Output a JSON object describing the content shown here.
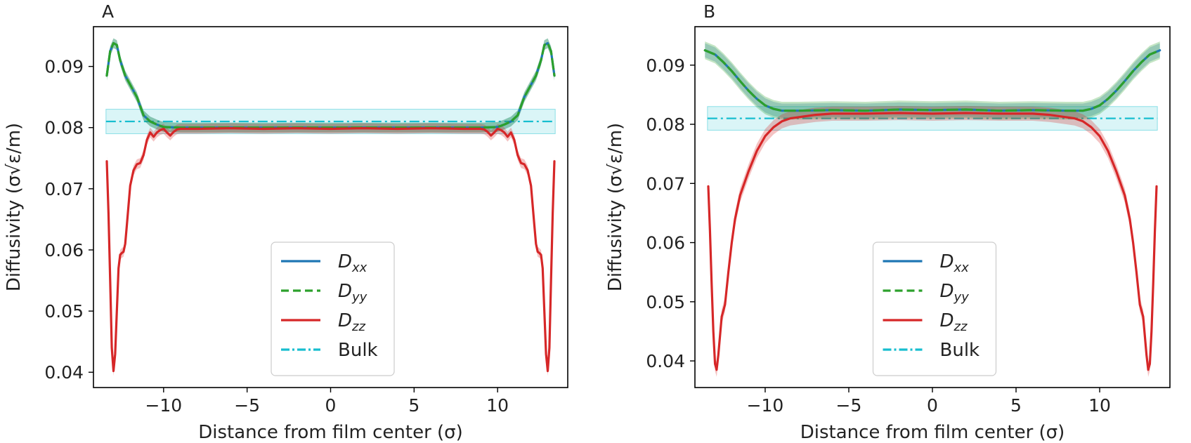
{
  "chart_data": [
    {
      "panel": "A",
      "type": "line",
      "title": "",
      "xlabel": "Distance from film center (σ)",
      "ylabel": "Diffusivity (σ√ε/m)",
      "xlim": [
        -14.2,
        14.2
      ],
      "ylim": [
        0.0375,
        0.0965
      ],
      "xticks": [
        -10,
        -5,
        0,
        5,
        10
      ],
      "xtick_labels": [
        "−10",
        "−5",
        "0",
        "5",
        "10"
      ],
      "yticks": [
        0.04,
        0.05,
        0.06,
        0.07,
        0.08,
        0.09
      ],
      "ytick_labels": [
        "0.04",
        "0.05",
        "0.06",
        "0.07",
        "0.08",
        "0.09"
      ],
      "grid": false,
      "legend_position": "lower center",
      "bulk": {
        "value": 0.081,
        "band": [
          0.079,
          0.083
        ]
      },
      "series": [
        {
          "key": "dxx",
          "name": "D",
          "subscript": "xx",
          "color": "#1f77b4",
          "style": "solid",
          "band": 0.0008,
          "x": [
            -13.4,
            -13.2,
            -13.0,
            -12.8,
            -12.6,
            -12.3,
            -12.0,
            -11.6,
            -11.2,
            -10.8,
            -10.4,
            -10.0,
            -9.0,
            -8.0,
            -6.0,
            -4.0,
            -2.0,
            0,
            2.0,
            4.0,
            6.0,
            8.0,
            9.0,
            10.0,
            10.4,
            10.8,
            11.2,
            11.6,
            12.0,
            12.3,
            12.6,
            12.8,
            13.0,
            13.2,
            13.4
          ],
          "y": [
            0.0885,
            0.0925,
            0.0938,
            0.0935,
            0.091,
            0.0885,
            0.087,
            0.085,
            0.082,
            0.081,
            0.0805,
            0.0801,
            0.08,
            0.08,
            0.08,
            0.08,
            0.08,
            0.08,
            0.08,
            0.08,
            0.08,
            0.08,
            0.08,
            0.0801,
            0.0805,
            0.081,
            0.082,
            0.085,
            0.087,
            0.0885,
            0.091,
            0.0935,
            0.0938,
            0.0925,
            0.0885
          ]
        },
        {
          "key": "dyy",
          "name": "D",
          "subscript": "yy",
          "color": "#2ca02c",
          "style": "dashed",
          "band": 0.0008,
          "x": [
            -13.4,
            -13.2,
            -13.0,
            -12.8,
            -12.6,
            -12.3,
            -12.0,
            -11.6,
            -11.2,
            -10.8,
            -10.4,
            -10.0,
            -9.0,
            -8.0,
            -6.0,
            -4.0,
            -2.0,
            0,
            2.0,
            4.0,
            6.0,
            8.0,
            9.0,
            10.0,
            10.4,
            10.8,
            11.2,
            11.6,
            12.0,
            12.3,
            12.6,
            12.8,
            13.0,
            13.2,
            13.4
          ],
          "y": [
            0.0885,
            0.0925,
            0.0938,
            0.0935,
            0.091,
            0.0885,
            0.087,
            0.085,
            0.082,
            0.081,
            0.0805,
            0.0801,
            0.08,
            0.08,
            0.08,
            0.08,
            0.08,
            0.08,
            0.08,
            0.08,
            0.08,
            0.08,
            0.08,
            0.0801,
            0.0805,
            0.081,
            0.082,
            0.085,
            0.087,
            0.0885,
            0.091,
            0.0935,
            0.0938,
            0.0925,
            0.0885
          ]
        },
        {
          "key": "dzz",
          "name": "D",
          "subscript": "zz",
          "color": "#d62728",
          "style": "solid",
          "band": 0.0008,
          "x": [
            -13.4,
            -13.3,
            -13.2,
            -13.1,
            -13.0,
            -12.9,
            -12.8,
            -12.7,
            -12.6,
            -12.5,
            -12.4,
            -12.3,
            -12.2,
            -12.0,
            -11.8,
            -11.6,
            -11.4,
            -11.2,
            -11.0,
            -10.8,
            -10.6,
            -10.4,
            -10.2,
            -10.0,
            -9.8,
            -9.6,
            -9.4,
            -9.2,
            -9.0,
            -8.0,
            -6.0,
            -4.0,
            -2.0,
            0,
            2.0,
            4.0,
            6.0,
            8.0,
            9.0,
            9.2,
            9.4,
            9.6,
            9.8,
            10.0,
            10.2,
            10.4,
            10.6,
            10.8,
            11.0,
            11.2,
            11.4,
            11.6,
            11.8,
            12.0,
            12.2,
            12.3,
            12.4,
            12.5,
            12.6,
            12.7,
            12.8,
            12.9,
            13.0,
            13.1,
            13.2,
            13.3,
            13.4
          ],
          "y": [
            0.0745,
            0.066,
            0.055,
            0.044,
            0.0402,
            0.043,
            0.05,
            0.057,
            0.0592,
            0.0595,
            0.0597,
            0.061,
            0.064,
            0.0705,
            0.073,
            0.074,
            0.0742,
            0.0755,
            0.078,
            0.0792,
            0.0785,
            0.0792,
            0.0796,
            0.0798,
            0.0792,
            0.0787,
            0.0793,
            0.0797,
            0.0798,
            0.0798,
            0.0799,
            0.0798,
            0.0799,
            0.0798,
            0.0799,
            0.0798,
            0.0799,
            0.0798,
            0.0798,
            0.0797,
            0.0793,
            0.0787,
            0.0792,
            0.0798,
            0.0796,
            0.0792,
            0.0785,
            0.0792,
            0.078,
            0.0755,
            0.0742,
            0.074,
            0.073,
            0.0705,
            0.064,
            0.061,
            0.0597,
            0.0595,
            0.0592,
            0.057,
            0.05,
            0.043,
            0.0402,
            0.044,
            0.055,
            0.066,
            0.0745
          ]
        }
      ],
      "legend": [
        {
          "label": "D",
          "sub": "xx",
          "color": "#1f77b4",
          "style": "solid"
        },
        {
          "label": "D",
          "sub": "yy",
          "color": "#2ca02c",
          "style": "dashed"
        },
        {
          "label": "D",
          "sub": "zz",
          "color": "#d62728",
          "style": "solid"
        },
        {
          "label": "Bulk",
          "sub": "",
          "color": "#17becf",
          "style": "dashdot"
        }
      ]
    },
    {
      "panel": "B",
      "type": "line",
      "title": "",
      "xlabel": "Distance from film center (σ)",
      "ylabel": "Diffusivity (σ√ε/m)",
      "xlim": [
        -14.2,
        14.2
      ],
      "ylim": [
        0.0355,
        0.0965
      ],
      "xticks": [
        -10,
        -5,
        0,
        5,
        10
      ],
      "xtick_labels": [
        "−10",
        "−5",
        "0",
        "5",
        "10"
      ],
      "yticks": [
        0.04,
        0.05,
        0.06,
        0.07,
        0.08,
        0.09
      ],
      "ytick_labels": [
        "0.04",
        "0.05",
        "0.06",
        "0.07",
        "0.08",
        "0.09"
      ],
      "grid": false,
      "legend_position": "lower center",
      "bulk": {
        "value": 0.081,
        "band": [
          0.079,
          0.083
        ]
      },
      "series": [
        {
          "key": "dxx",
          "name": "D",
          "subscript": "xx",
          "color": "#1f77b4",
          "style": "solid",
          "band": 0.0012,
          "x": [
            -13.6,
            -13.0,
            -12.5,
            -12.0,
            -11.5,
            -11.0,
            -10.5,
            -10.0,
            -9.5,
            -9.0,
            -8.0,
            -6.0,
            -4.0,
            -2.0,
            0,
            2.0,
            4.0,
            6.0,
            8.0,
            9.0,
            9.5,
            10.0,
            10.5,
            11.0,
            11.5,
            12.0,
            12.5,
            13.0,
            13.6
          ],
          "y": [
            0.0925,
            0.0918,
            0.0905,
            0.089,
            0.0873,
            0.0857,
            0.0843,
            0.0832,
            0.0826,
            0.0823,
            0.0823,
            0.0824,
            0.0823,
            0.0825,
            0.0824,
            0.0825,
            0.0823,
            0.0824,
            0.0823,
            0.0823,
            0.0826,
            0.0832,
            0.0843,
            0.0857,
            0.0873,
            0.089,
            0.0905,
            0.0918,
            0.0925
          ]
        },
        {
          "key": "dyy",
          "name": "D",
          "subscript": "yy",
          "color": "#2ca02c",
          "style": "dashed",
          "band": 0.0015,
          "x": [
            -13.6,
            -13.0,
            -12.5,
            -12.0,
            -11.5,
            -11.0,
            -10.5,
            -10.0,
            -9.5,
            -9.0,
            -8.0,
            -6.0,
            -4.0,
            -2.0,
            0,
            2.0,
            4.0,
            6.0,
            8.0,
            9.0,
            9.5,
            10.0,
            10.5,
            11.0,
            11.5,
            12.0,
            12.5,
            13.0,
            13.6
          ],
          "y": [
            0.0925,
            0.0918,
            0.0905,
            0.089,
            0.0873,
            0.0857,
            0.0843,
            0.0832,
            0.0826,
            0.0823,
            0.0823,
            0.0824,
            0.0823,
            0.0825,
            0.0824,
            0.0825,
            0.0823,
            0.0824,
            0.0823,
            0.0823,
            0.0826,
            0.0832,
            0.0843,
            0.0857,
            0.0873,
            0.089,
            0.0905,
            0.0918,
            0.0925
          ]
        },
        {
          "key": "dzz",
          "name": "D",
          "subscript": "zz",
          "color": "#d62728",
          "style": "solid",
          "band": 0.0012,
          "x": [
            -13.4,
            -13.3,
            -13.2,
            -13.1,
            -13.0,
            -12.9,
            -12.8,
            -12.6,
            -12.4,
            -12.2,
            -12.0,
            -11.8,
            -11.5,
            -11.0,
            -10.5,
            -10.0,
            -9.5,
            -9.0,
            -8.5,
            -8.0,
            -7.0,
            -6.0,
            -4.0,
            -2.0,
            0,
            2.0,
            4.0,
            6.0,
            7.0,
            8.0,
            8.5,
            9.0,
            9.5,
            10.0,
            10.5,
            11.0,
            11.5,
            11.8,
            12.0,
            12.2,
            12.4,
            12.6,
            12.8,
            12.9,
            13.0,
            13.1,
            13.2,
            13.3,
            13.4
          ],
          "y": [
            0.0695,
            0.062,
            0.053,
            0.045,
            0.0395,
            0.0385,
            0.041,
            0.0475,
            0.0495,
            0.055,
            0.06,
            0.064,
            0.068,
            0.072,
            0.0755,
            0.078,
            0.0795,
            0.0805,
            0.081,
            0.0812,
            0.0816,
            0.0818,
            0.0818,
            0.0819,
            0.0818,
            0.0819,
            0.0818,
            0.0818,
            0.0816,
            0.0812,
            0.081,
            0.0805,
            0.0795,
            0.078,
            0.0755,
            0.072,
            0.068,
            0.064,
            0.06,
            0.055,
            0.0495,
            0.0475,
            0.041,
            0.0385,
            0.0395,
            0.045,
            0.053,
            0.062,
            0.0695
          ]
        }
      ],
      "legend": [
        {
          "label": "D",
          "sub": "xx",
          "color": "#1f77b4",
          "style": "solid"
        },
        {
          "label": "D",
          "sub": "yy",
          "color": "#2ca02c",
          "style": "dashed"
        },
        {
          "label": "D",
          "sub": "zz",
          "color": "#d62728",
          "style": "solid"
        },
        {
          "label": "Bulk",
          "sub": "",
          "color": "#17becf",
          "style": "dashdot"
        }
      ]
    }
  ]
}
